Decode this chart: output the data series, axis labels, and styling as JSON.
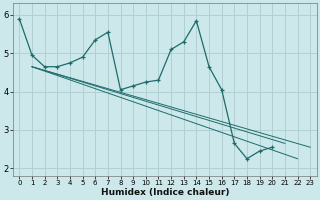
{
  "xlabel": "Humidex (Indice chaleur)",
  "bg_color": "#cce8ea",
  "grid_color": "#b0d0d4",
  "line_color": "#1e6b6b",
  "xlim": [
    -0.5,
    23.5
  ],
  "ylim": [
    1.8,
    6.3
  ],
  "xticks": [
    0,
    1,
    2,
    3,
    4,
    5,
    6,
    7,
    8,
    9,
    10,
    11,
    12,
    13,
    14,
    15,
    16,
    17,
    18,
    19,
    20,
    21,
    22,
    23
  ],
  "yticks": [
    2,
    3,
    4,
    5,
    6
  ],
  "lines": [
    {
      "x": [
        0,
        1,
        2,
        3,
        4,
        5,
        6,
        7,
        8,
        9,
        10,
        11,
        12,
        13,
        14,
        15,
        16,
        17,
        18,
        19,
        20,
        21,
        22,
        23
      ],
      "y": [
        5.9,
        4.95,
        4.65,
        4.65,
        4.75,
        4.9,
        5.35,
        5.55,
        4.05,
        4.15,
        4.25,
        4.3,
        5.1,
        5.3,
        5.85,
        4.65,
        4.05,
        2.65,
        2.25,
        2.45,
        2.55,
        null,
        null,
        null
      ],
      "marker": true
    },
    {
      "x": [
        1,
        2,
        3,
        4,
        5,
        6,
        7,
        8,
        9,
        10,
        11,
        12,
        13,
        14,
        15,
        16,
        17,
        18,
        19,
        20,
        21,
        22,
        23
      ],
      "y": [
        4.95,
        4.65,
        4.65,
        4.65,
        4.65,
        4.65,
        4.65,
        4.65,
        4.65,
        4.5,
        4.4,
        4.3,
        4.25,
        4.2,
        4.15,
        4.1,
        4.05,
        3.0,
        2.65,
        2.3,
        2.55,
        null,
        null
      ],
      "marker": false
    },
    {
      "x": [
        1,
        2,
        3,
        4,
        5,
        6,
        7,
        8,
        9,
        10,
        11,
        12,
        13,
        14,
        15,
        16,
        17,
        18,
        19,
        20,
        21,
        22,
        23
      ],
      "y": [
        4.95,
        4.65,
        4.65,
        4.65,
        4.65,
        4.65,
        4.65,
        4.65,
        4.65,
        4.5,
        4.4,
        4.3,
        4.25,
        4.2,
        4.15,
        4.1,
        4.05,
        2.95,
        2.8,
        2.4,
        2.55,
        null,
        null
      ],
      "marker": false
    },
    {
      "x": [
        1,
        23
      ],
      "y": [
        4.65,
        2.55
      ],
      "marker": false
    }
  ],
  "main_line": {
    "x": [
      0,
      1,
      2,
      3,
      4,
      5,
      6,
      7,
      8,
      9,
      10,
      11,
      12,
      13,
      14,
      15,
      16,
      17,
      18,
      19,
      20,
      21,
      22,
      23
    ],
    "y": [
      5.9,
      4.95,
      4.65,
      4.65,
      4.75,
      4.9,
      5.35,
      5.55,
      4.05,
      4.15,
      4.25,
      4.3,
      5.1,
      5.3,
      5.85,
      4.65,
      4.05,
      2.65,
      2.25,
      2.45,
      2.55,
      null,
      null,
      null
    ]
  }
}
